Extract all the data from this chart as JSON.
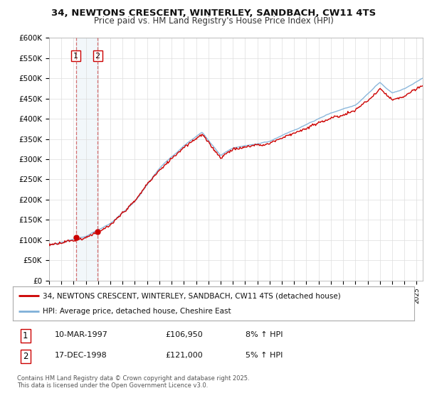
{
  "title_line1": "34, NEWTONS CRESCENT, WINTERLEY, SANDBACH, CW11 4TS",
  "title_line2": "Price paid vs. HM Land Registry's House Price Index (HPI)",
  "ylabel_ticks": [
    "£0",
    "£50K",
    "£100K",
    "£150K",
    "£200K",
    "£250K",
    "£300K",
    "£350K",
    "£400K",
    "£450K",
    "£500K",
    "£550K",
    "£600K"
  ],
  "ytick_values": [
    0,
    50000,
    100000,
    150000,
    200000,
    250000,
    300000,
    350000,
    400000,
    450000,
    500000,
    550000,
    600000
  ],
  "price_color": "#cc0000",
  "hpi_color": "#7fb0d8",
  "background_color": "#f0f0f0",
  "plot_bg_color": "#ffffff",
  "legend_label_price": "34, NEWTONS CRESCENT, WINTERLEY, SANDBACH, CW11 4TS (detached house)",
  "legend_label_hpi": "HPI: Average price, detached house, Cheshire East",
  "sale1_date": 1997.19,
  "sale1_price": 106950,
  "sale2_date": 1998.96,
  "sale2_price": 121000,
  "footer_text": "Contains HM Land Registry data © Crown copyright and database right 2025.\nThis data is licensed under the Open Government Licence v3.0.",
  "xmin": 1995.0,
  "xmax": 2025.5,
  "ymin": 0,
  "ymax": 600000
}
